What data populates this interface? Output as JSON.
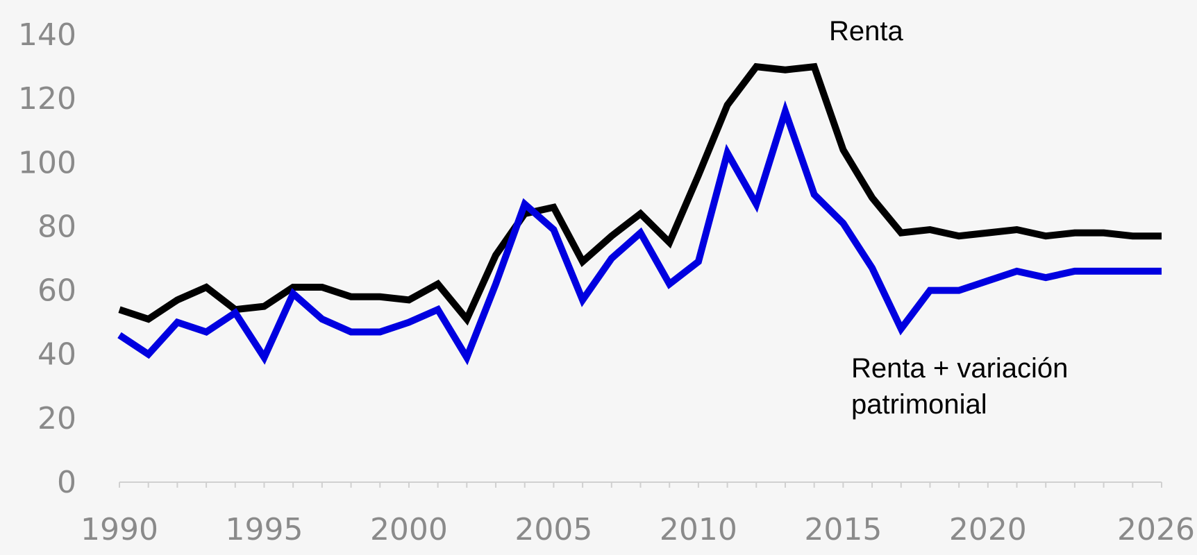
{
  "chart_data": {
    "type": "line",
    "title": "",
    "xlabel": "",
    "ylabel": "",
    "xlim": [
      1990,
      2026
    ],
    "ylim": [
      0,
      140
    ],
    "yticks": [
      "0",
      "20",
      "40",
      "60",
      "80",
      "100",
      "120",
      "140"
    ],
    "xticks": [
      "1990",
      "1995",
      "2000",
      "2005",
      "2010",
      "2015",
      "2020",
      "2026"
    ],
    "grid": false,
    "colors": {
      "renta": "#000000",
      "renta_variacion": "#0000e0",
      "axis": "#d0d0d0",
      "tick_text": "#8a8a8a"
    },
    "x": [
      1990,
      1991,
      1992,
      1993,
      1994,
      1995,
      1996,
      1997,
      1998,
      1999,
      2000,
      2001,
      2002,
      2003,
      2004,
      2005,
      2006,
      2007,
      2008,
      2009,
      2010,
      2011,
      2012,
      2013,
      2014,
      2015,
      2016,
      2017,
      2018,
      2019,
      2020,
      2021,
      2022,
      2023,
      2024,
      2025,
      2026
    ],
    "series": [
      {
        "name": "Renta",
        "label_lines": [
          "Renta"
        ],
        "key": "renta",
        "values": [
          54,
          51,
          57,
          61,
          54,
          55,
          61,
          61,
          58,
          58,
          57,
          62,
          51,
          71,
          84,
          86,
          69,
          77,
          84,
          75,
          96,
          118,
          130,
          129,
          130,
          104,
          89,
          78,
          79,
          77,
          78,
          79,
          77,
          78,
          78,
          77,
          77
        ]
      },
      {
        "name": "Renta + variación patrimonial",
        "label_lines": [
          "Renta + variación",
          "patrimonial"
        ],
        "key": "renta_variacion",
        "values": [
          46,
          40,
          50,
          47,
          53,
          39,
          59,
          51,
          47,
          47,
          50,
          54,
          39,
          62,
          87,
          79,
          57,
          70,
          78,
          62,
          69,
          103,
          87,
          116,
          90,
          81,
          67,
          48,
          60,
          60,
          63,
          66,
          64,
          66,
          66,
          66,
          66
        ]
      }
    ]
  }
}
